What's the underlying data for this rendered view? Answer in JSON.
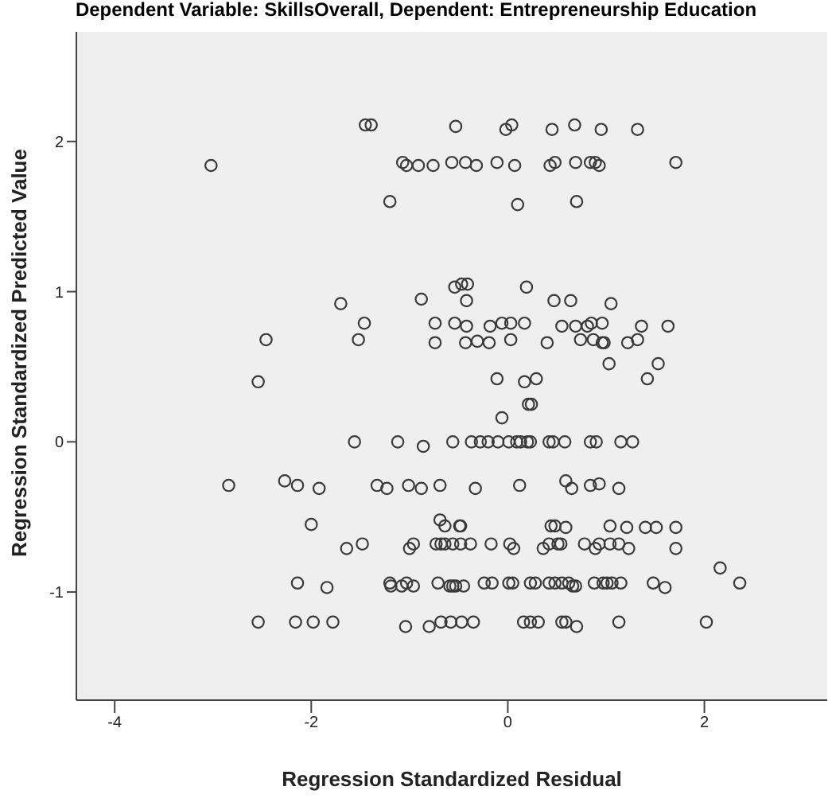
{
  "chart_data": {
    "type": "scatter",
    "title": "Dependent Variable: SkillsOverall, Dependent: Entrepreneurship Education",
    "xlabel": "Regression Standardized Residual",
    "ylabel": "Regression Standardized Predicted Value",
    "xlim": [
      -4.39,
      3.25
    ],
    "ylim": [
      -1.72,
      2.73
    ],
    "xticks": [
      -4,
      -2,
      0,
      2
    ],
    "yticks": [
      -1,
      0,
      1,
      2
    ],
    "grid": false,
    "legend": false,
    "marker": "circle",
    "series": [
      {
        "color": "#3a3a3a",
        "x": [
          -3.02,
          -1.45,
          -1.39,
          -1.07,
          -1.03,
          -0.91,
          -0.76,
          -1.2,
          -1.7,
          -0.88,
          -1.46,
          -0.74,
          -2.46,
          -1.52,
          -0.74,
          -2.54,
          -0.53,
          -0.02,
          0.04,
          0.45,
          0.68,
          0.95,
          1.32,
          -0.57,
          -0.43,
          -0.32,
          -0.11,
          0.07,
          0.43,
          0.48,
          0.69,
          0.84,
          0.89,
          0.93,
          1.71,
          0.1,
          0.7,
          -0.54,
          -0.47,
          -0.41,
          0.19,
          -0.42,
          0.47,
          0.64,
          1.05,
          -0.54,
          -0.42,
          -0.18,
          -0.06,
          0.03,
          0.17,
          0.55,
          0.69,
          0.81,
          0.85,
          0.96,
          1.36,
          1.63,
          -0.43,
          -0.31,
          -0.19,
          0.03,
          0.4,
          0.74,
          0.87,
          0.96,
          0.98,
          1.22,
          1.32,
          1.03,
          1.53,
          -0.11,
          0.17,
          0.29,
          1.42,
          0.21,
          0.24,
          -0.06,
          -0.56,
          -0.37,
          -0.28,
          -0.2,
          -0.1,
          0.01,
          0.09,
          0.13,
          0.2,
          0.23,
          0.42,
          0.46,
          0.58,
          0.84,
          0.9,
          1.15,
          1.27,
          -1.56,
          -1.12,
          -0.86,
          -2.84,
          -2.27,
          -2.14,
          -1.92,
          -1.33,
          -1.23,
          -1.01,
          -0.88,
          -0.69,
          -0.33,
          0.12,
          0.59,
          0.65,
          0.84,
          0.93,
          1.13,
          -2.0,
          -0.69,
          -0.64,
          -0.49,
          -0.48,
          0.44,
          0.48,
          0.59,
          1.04,
          1.21,
          1.4,
          1.51,
          1.71,
          -1.64,
          -1.48,
          -1.0,
          -0.96,
          -0.73,
          -0.68,
          -0.64,
          -0.56,
          -0.48,
          -0.38,
          -0.17,
          0.02,
          0.06,
          0.36,
          0.42,
          0.51,
          0.54,
          0.78,
          0.89,
          0.93,
          1.04,
          1.13,
          1.23,
          1.71,
          -2.14,
          -1.84,
          -1.2,
          -1.19,
          -1.08,
          -1.03,
          -0.96,
          -0.71,
          -0.59,
          -0.56,
          -0.53,
          -0.45,
          -0.24,
          -0.16,
          0.01,
          0.05,
          0.23,
          0.28,
          0.42,
          0.48,
          0.55,
          0.62,
          0.66,
          0.69,
          0.88,
          0.97,
          1.01,
          1.06,
          1.15,
          1.48,
          1.6,
          2.36,
          2.16,
          -2.54,
          -2.16,
          -1.98,
          -1.78,
          -1.04,
          -0.8,
          -0.68,
          -0.58,
          -0.47,
          -0.35,
          0.16,
          0.23,
          0.31,
          0.55,
          0.59,
          0.7,
          1.13,
          2.02
        ],
        "values": [
          1.84,
          2.11,
          2.11,
          1.86,
          1.84,
          1.84,
          1.84,
          1.6,
          0.92,
          0.95,
          0.79,
          0.79,
          0.68,
          0.68,
          0.66,
          0.4,
          2.1,
          2.08,
          2.11,
          2.08,
          2.11,
          2.08,
          2.08,
          1.86,
          1.86,
          1.84,
          1.86,
          1.84,
          1.84,
          1.86,
          1.86,
          1.86,
          1.86,
          1.84,
          1.86,
          1.58,
          1.6,
          1.03,
          1.05,
          1.05,
          1.03,
          0.94,
          0.94,
          0.94,
          0.92,
          0.79,
          0.77,
          0.77,
          0.79,
          0.79,
          0.79,
          0.77,
          0.77,
          0.77,
          0.79,
          0.79,
          0.77,
          0.77,
          0.66,
          0.67,
          0.66,
          0.68,
          0.66,
          0.68,
          0.68,
          0.66,
          0.66,
          0.66,
          0.68,
          0.52,
          0.52,
          0.42,
          0.4,
          0.42,
          0.42,
          0.25,
          0.25,
          0.16,
          0,
          0,
          0,
          0,
          0,
          0,
          0,
          0,
          0,
          0,
          0,
          0,
          0,
          0,
          0,
          0,
          0,
          0,
          0,
          -0.03,
          -0.29,
          -0.26,
          -0.29,
          -0.31,
          -0.29,
          -0.31,
          -0.29,
          -0.31,
          -0.29,
          -0.31,
          -0.29,
          -0.26,
          -0.31,
          -0.29,
          -0.28,
          -0.31,
          -0.55,
          -0.52,
          -0.56,
          -0.56,
          -0.56,
          -0.56,
          -0.56,
          -0.57,
          -0.56,
          -0.57,
          -0.57,
          -0.57,
          -0.57,
          -0.71,
          -0.68,
          -0.71,
          -0.68,
          -0.68,
          -0.68,
          -0.68,
          -0.68,
          -0.68,
          -0.68,
          -0.68,
          -0.68,
          -0.71,
          -0.71,
          -0.68,
          -0.68,
          -0.68,
          -0.68,
          -0.71,
          -0.68,
          -0.68,
          -0.68,
          -0.71,
          -0.71,
          -0.94,
          -0.97,
          -0.94,
          -0.96,
          -0.96,
          -0.94,
          -0.96,
          -0.94,
          -0.96,
          -0.96,
          -0.96,
          -0.96,
          -0.94,
          -0.94,
          -0.94,
          -0.94,
          -0.94,
          -0.94,
          -0.94,
          -0.94,
          -0.94,
          -0.94,
          -0.96,
          -0.96,
          -0.94,
          -0.94,
          -0.94,
          -0.94,
          -0.94,
          -0.94,
          -0.97,
          -0.94,
          -0.84,
          -1.2,
          -1.2,
          -1.2,
          -1.2,
          -1.23,
          -1.23,
          -1.2,
          -1.2,
          -1.2,
          -1.2,
          -1.2,
          -1.2,
          -1.2,
          -1.2,
          -1.2,
          -1.23,
          -1.2,
          -1.2
        ]
      }
    ]
  }
}
